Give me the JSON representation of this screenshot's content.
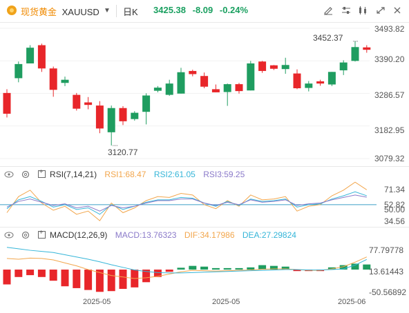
{
  "header": {
    "symbol_cn": "现货黄金",
    "symbol_code": "XAUUSD",
    "period": "日K",
    "last_price": "3425.38",
    "change": "-8.09",
    "change_pct": "-0.24%",
    "icons": [
      "draw-icon",
      "settings-icon",
      "indicator-icon",
      "fullscreen-icon",
      "close-icon"
    ]
  },
  "main": {
    "y_ticks": [
      "3493.82",
      "3390.20",
      "3286.57",
      "3182.95",
      "3079.32"
    ],
    "high_label": "3452.37",
    "low_label": "3120.77"
  },
  "rsi": {
    "title": "RSI(7,14,21)",
    "rsi1": "RSI1:68.47",
    "rsi2": "RSI2:61.05",
    "rsi3": "RSI3:59.25",
    "y_ticks": [
      "71.34",
      "52.82",
      "50.00",
      "34.56"
    ]
  },
  "macd": {
    "title": "MACD(12,26,9)",
    "macd": "MACD:13.76323",
    "dif": "DIF:34.17986",
    "dea": "DEA:27.29824",
    "y_ticks": [
      "77.79778",
      "13.61443",
      "-50.56892"
    ]
  },
  "x_labels": [
    "2025-05",
    "2025-05",
    "2025-06"
  ],
  "colors": {
    "up": "#1f9d60",
    "down": "#e8262a",
    "rsi1": "#f2a64c",
    "rsi2": "#34b5d8",
    "rsi3": "#8a79c9",
    "dif": "#f2a64c",
    "dea": "#34b5d8"
  },
  "candles": [
    {
      "o": 3288,
      "h": 3300,
      "l": 3210,
      "c": 3222
    },
    {
      "o": 3335,
      "h": 3388,
      "l": 3322,
      "c": 3380
    },
    {
      "o": 3382,
      "h": 3440,
      "l": 3382,
      "c": 3432
    },
    {
      "o": 3440,
      "h": 3445,
      "l": 3355,
      "c": 3366
    },
    {
      "o": 3366,
      "h": 3372,
      "l": 3276,
      "c": 3298
    },
    {
      "o": 3320,
      "h": 3340,
      "l": 3310,
      "c": 3330
    },
    {
      "o": 3282,
      "h": 3288,
      "l": 3232,
      "c": 3238
    },
    {
      "o": 3258,
      "h": 3275,
      "l": 3236,
      "c": 3250
    },
    {
      "o": 3248,
      "h": 3262,
      "l": 3160,
      "c": 3175
    },
    {
      "o": 3163,
      "h": 3248,
      "l": 3120.77,
      "c": 3240
    },
    {
      "o": 3240,
      "h": 3246,
      "l": 3186,
      "c": 3198
    },
    {
      "o": 3205,
      "h": 3230,
      "l": 3200,
      "c": 3225
    },
    {
      "o": 3228,
      "h": 3287,
      "l": 3188,
      "c": 3280
    },
    {
      "o": 3295,
      "h": 3310,
      "l": 3290,
      "c": 3305
    },
    {
      "o": 3282,
      "h": 3330,
      "l": 3279,
      "c": 3318
    },
    {
      "o": 3286,
      "h": 3368,
      "l": 3286,
      "c": 3354
    },
    {
      "o": 3358,
      "h": 3362,
      "l": 3341,
      "c": 3348
    },
    {
      "o": 3342,
      "h": 3353,
      "l": 3303,
      "c": 3308
    },
    {
      "o": 3300,
      "h": 3315,
      "l": 3290,
      "c": 3290
    },
    {
      "o": 3291,
      "h": 3318,
      "l": 3247,
      "c": 3316
    },
    {
      "o": 3316,
      "h": 3320,
      "l": 3286,
      "c": 3294
    },
    {
      "o": 3296,
      "h": 3390,
      "l": 3296,
      "c": 3382
    },
    {
      "o": 3388,
      "h": 3390,
      "l": 3352,
      "c": 3358
    },
    {
      "o": 3376,
      "h": 3377,
      "l": 3361,
      "c": 3365
    },
    {
      "o": 3364,
      "h": 3400,
      "l": 3349,
      "c": 3377
    },
    {
      "o": 3350,
      "h": 3363,
      "l": 3300,
      "c": 3303
    },
    {
      "o": 3304,
      "h": 3326,
      "l": 3293,
      "c": 3318
    },
    {
      "o": 3325,
      "h": 3330,
      "l": 3311,
      "c": 3318
    },
    {
      "o": 3315,
      "h": 3355,
      "l": 3310,
      "c": 3355
    },
    {
      "o": 3360,
      "h": 3392,
      "l": 3345,
      "c": 3385
    },
    {
      "o": 3390,
      "h": 3452.37,
      "l": 3388,
      "c": 3434
    },
    {
      "o": 3433,
      "h": 3440,
      "l": 3416,
      "c": 3425.38
    }
  ],
  "rsi_series": {
    "rsi1": [
      40,
      60,
      68,
      52,
      43,
      48,
      38,
      42,
      30,
      52,
      40,
      46,
      55,
      60,
      59,
      64,
      62,
      50,
      45,
      55,
      48,
      62,
      56,
      57,
      60,
      42,
      48,
      50,
      61,
      68,
      78,
      68.47
    ],
    "rsi2": [
      45,
      56,
      60,
      54,
      47,
      50,
      44,
      46,
      38,
      50,
      44,
      48,
      53,
      56,
      56,
      59,
      58,
      52,
      48,
      54,
      49,
      57,
      54,
      55,
      57,
      47,
      50,
      51,
      57,
      61,
      66,
      61.05
    ],
    "rsi3": [
      47,
      54,
      57,
      53,
      49,
      51,
      46,
      48,
      42,
      49,
      46,
      48,
      52,
      55,
      55,
      57,
      57,
      52,
      49,
      53,
      50,
      56,
      53,
      54,
      56,
      49,
      51,
      52,
      56,
      59,
      62,
      59.25
    ]
  },
  "macd_series": {
    "dif": [
      30,
      28,
      31,
      30,
      26,
      18,
      10,
      0,
      -8,
      -16,
      -20,
      -24,
      -22,
      -18,
      -12,
      -6,
      -2,
      -3,
      -4,
      -3,
      -2,
      -1,
      1,
      2,
      2,
      0,
      -2,
      -2,
      2,
      8,
      20,
      34.18
    ],
    "dea": [
      60,
      56,
      52,
      49,
      46,
      40,
      34,
      28,
      21,
      13,
      6,
      -1,
      -5,
      -8,
      -9,
      -9,
      -8,
      -7,
      -6,
      -5,
      -4,
      -3,
      -2,
      -1,
      0,
      0,
      -1,
      -1,
      0,
      2,
      12,
      27.3
    ],
    "hist": [
      -40,
      -20,
      -15,
      -20,
      -30,
      -45,
      -50,
      -55,
      -60,
      -58,
      -52,
      -48,
      -34,
      -20,
      -6,
      5,
      10,
      8,
      4,
      4,
      4,
      6,
      12,
      10,
      8,
      -4,
      -4,
      -4,
      6,
      12,
      16,
      13.76
    ]
  }
}
